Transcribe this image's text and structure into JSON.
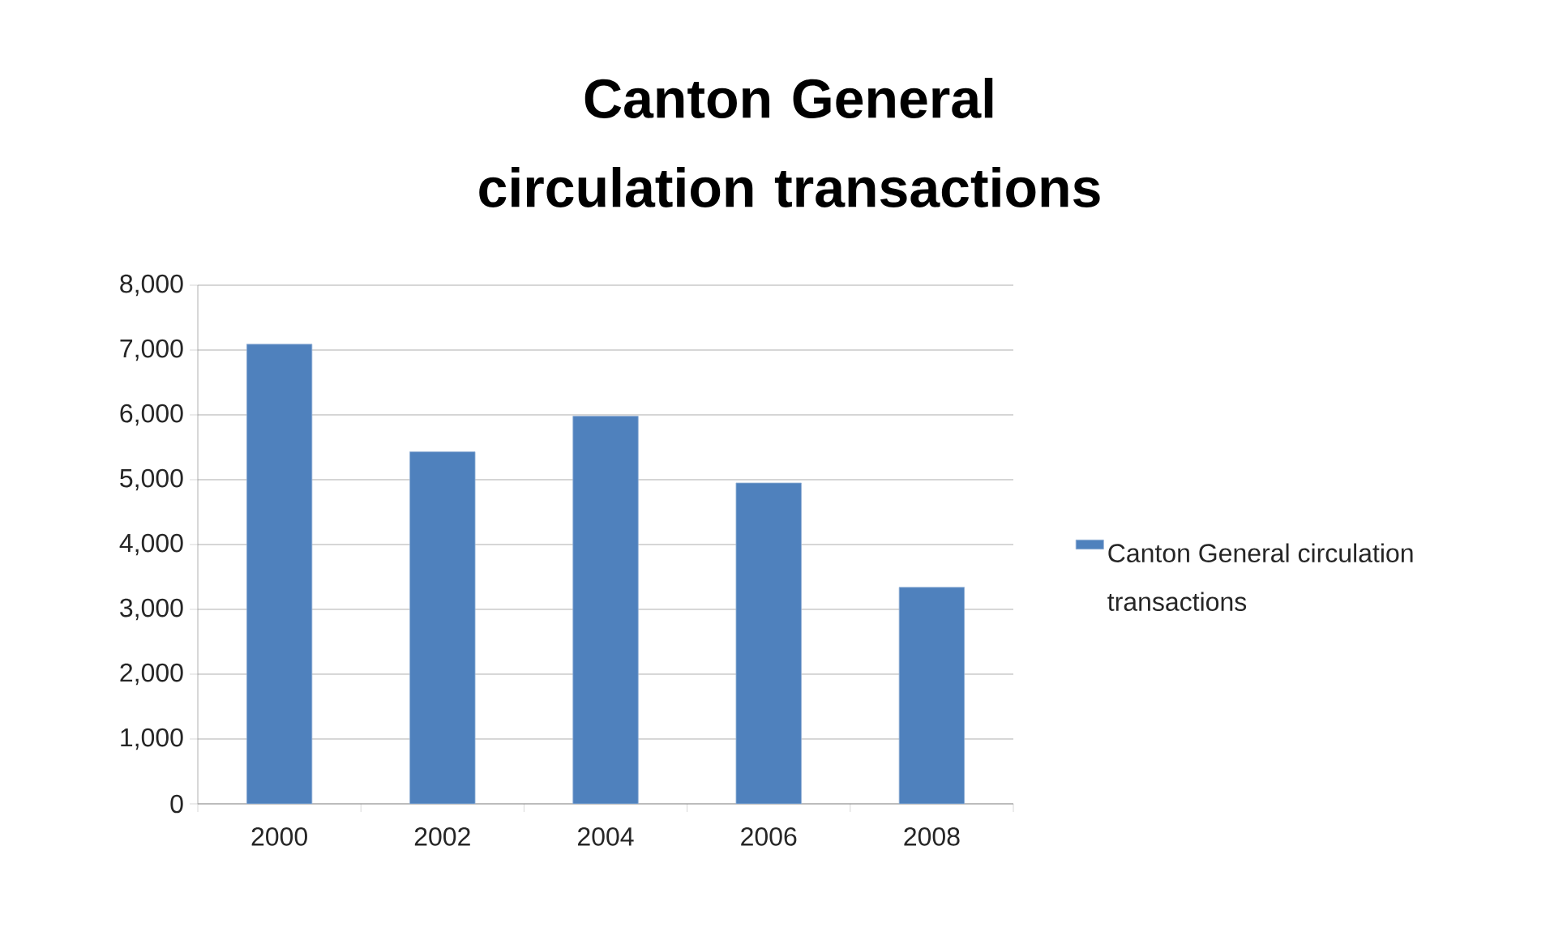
{
  "chart_data": {
    "type": "bar",
    "title": "Canton General circulation transactions",
    "categories": [
      "2000",
      "2002",
      "2004",
      "2006",
      "2008"
    ],
    "series": [
      {
        "name": "Canton General circulation transactions",
        "color": "#4f81bd",
        "values": [
          7090,
          5430,
          5980,
          4950,
          3340
        ]
      }
    ],
    "ylim": [
      0,
      8000
    ],
    "yticks": [
      {
        "value": 0,
        "label": "0"
      },
      {
        "value": 1000,
        "label": "1,000"
      },
      {
        "value": 2000,
        "label": "2,000"
      },
      {
        "value": 3000,
        "label": "3,000"
      },
      {
        "value": 4000,
        "label": "4,000"
      },
      {
        "value": 5000,
        "label": "5,000"
      },
      {
        "value": 6000,
        "label": "6,000"
      },
      {
        "value": 7000,
        "label": "7,000"
      },
      {
        "value": 8000,
        "label": "8,000"
      }
    ],
    "grid": "y",
    "legend": "right"
  }
}
